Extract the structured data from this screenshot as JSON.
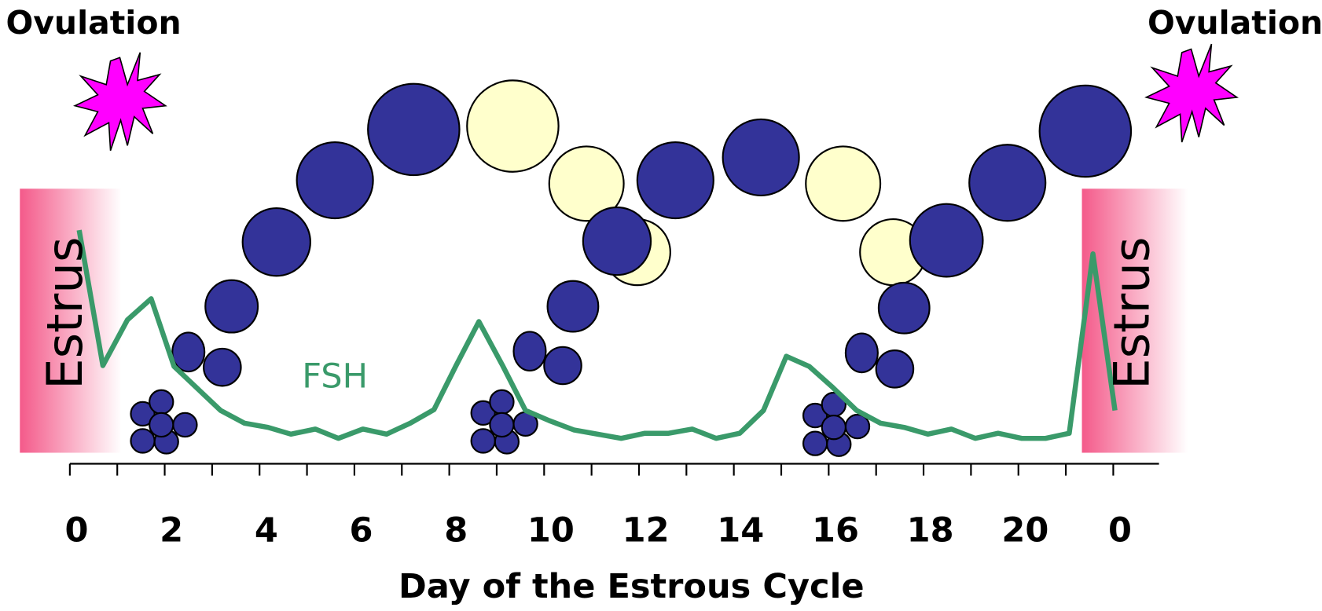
{
  "ovulation": [
    "Ovulation",
    "Ovulation"
  ],
  "estrus": [
    "Estrus",
    "Estrus"
  ],
  "hormone_label": "FSH",
  "axis": {
    "ticks": [
      "0",
      "2",
      "4",
      "6",
      "8",
      "10",
      "12",
      "14",
      "16",
      "18",
      "20",
      "0"
    ],
    "title": "Day of the Estrous Cycle"
  }
}
